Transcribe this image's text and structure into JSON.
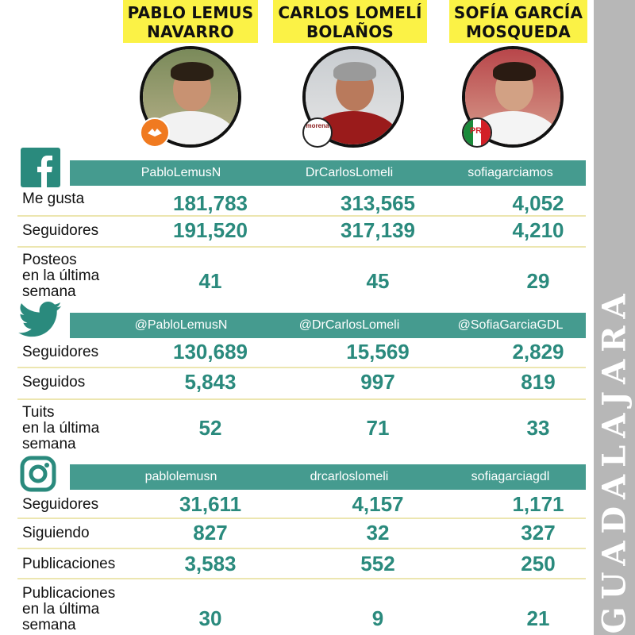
{
  "region": "GUADALAJARA",
  "colors": {
    "teal": "#459b8f",
    "value_teal": "#2a8a7d",
    "yellow": "#fbf246",
    "grey": "#b7b7b7"
  },
  "candidates": [
    {
      "name_line1": "PABLO LEMUS",
      "name_line2": "NAVARRO",
      "party_logo": "movimiento-ciudadano-logo"
    },
    {
      "name_line1": "CARLOS LOMELÍ",
      "name_line2": "BOLAÑOS",
      "party_logo": "morena-logo",
      "party_text": "morena"
    },
    {
      "name_line1": "SOFÍA GARCÍA",
      "name_line2": "MOSQUEDA",
      "party_logo": "pri-logo",
      "party_text": "PRI"
    }
  ],
  "facebook": {
    "icon": "facebook-icon",
    "accounts": [
      "PabloLemusN",
      "DrCarlosLomeli",
      "sofiagarciamos"
    ],
    "rows": [
      {
        "label": [
          "Me gusta"
        ],
        "values": [
          "181,783",
          "313,565",
          "4,052"
        ]
      },
      {
        "label": [
          "Seguidores"
        ],
        "values": [
          "191,520",
          "317,139",
          "4,210"
        ]
      },
      {
        "label": [
          "Posteos",
          "en la última",
          "semana"
        ],
        "values": [
          "41",
          "45",
          "29"
        ]
      }
    ]
  },
  "twitter": {
    "icon": "twitter-icon",
    "accounts": [
      "@PabloLemusN",
      "@DrCarlosLomeli",
      "@SofiaGarciaGDL"
    ],
    "rows": [
      {
        "label": [
          "Seguidores"
        ],
        "values": [
          "130,689",
          "15,569",
          "2,829"
        ]
      },
      {
        "label": [
          "Seguidos"
        ],
        "values": [
          "5,843",
          "997",
          "819"
        ]
      },
      {
        "label": [
          "Tuits",
          "en la última",
          "semana"
        ],
        "values": [
          "52",
          "71",
          "33"
        ]
      }
    ]
  },
  "instagram": {
    "icon": "instagram-icon",
    "accounts": [
      "pablolemusn",
      "drcarloslomeli",
      "sofiagarciagdl"
    ],
    "rows": [
      {
        "label": [
          "Seguidores"
        ],
        "values": [
          "31,611",
          "4,157",
          "1,171"
        ]
      },
      {
        "label": [
          "Siguiendo"
        ],
        "values": [
          "827",
          "32",
          "327"
        ]
      },
      {
        "label": [
          "Publicaciones"
        ],
        "values": [
          "3,583",
          "552",
          "250"
        ]
      },
      {
        "label": [
          "Publicaciones",
          "en la última",
          "semana"
        ],
        "values": [
          "30",
          "9",
          "21"
        ]
      }
    ]
  }
}
